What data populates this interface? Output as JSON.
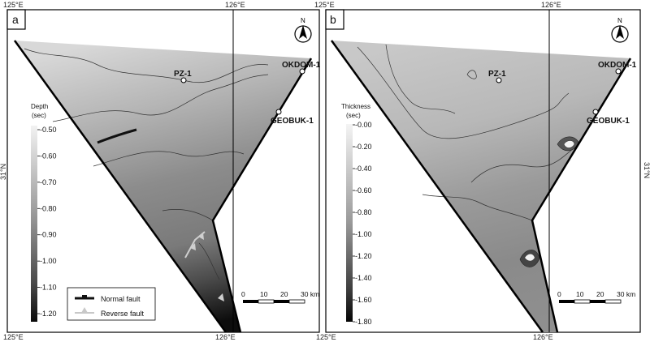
{
  "panels": [
    {
      "letter": "a",
      "colorbar": {
        "title_line1": "Depth",
        "title_line2": "(sec)",
        "ticks": [
          "-0.50",
          "-0.60",
          "-0.70",
          "-0.80",
          "-0.90",
          "-1.00",
          "-1.10",
          "-1.20"
        ]
      },
      "legend": {
        "normal_fault": "Normal fault",
        "reverse_fault": "Reverse fault"
      }
    },
    {
      "letter": "b",
      "colorbar": {
        "title_line1": "Thickness",
        "title_line2": "(sec)",
        "ticks": [
          "-0.00",
          "-0.20",
          "-0.40",
          "-0.60",
          "-0.80",
          "-1.00",
          "-1.20",
          "-1.40",
          "-1.60",
          "-1.80"
        ]
      }
    }
  ],
  "coords": {
    "lon_left": "125°E",
    "lon_mid": "126°E",
    "lat": "31°N"
  },
  "wells": {
    "pz1": "PZ-1",
    "okdom1": "OKDOM-1",
    "geobuk1": "GEOBUK-1"
  },
  "north_label": "N",
  "scale_bar": {
    "ticks": [
      "0",
      "10",
      "20",
      "30 km"
    ]
  },
  "colors": {
    "frame": "#000000",
    "map_light": "#eeeeee",
    "map_dark": "#111111",
    "normal_fault": "#111111",
    "reverse_fault": "#c8c8c8"
  }
}
